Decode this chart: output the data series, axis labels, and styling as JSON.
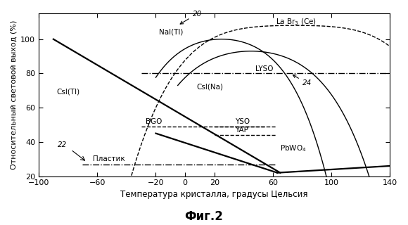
{
  "xlim": [
    -100,
    140
  ],
  "ylim": [
    20,
    115
  ],
  "yticks": [
    20,
    40,
    60,
    80,
    100
  ],
  "xticks": [
    -100,
    -60,
    -20,
    0,
    20,
    60,
    100,
    140
  ],
  "xlabel": "Температура кристалла, градусы Цельсия",
  "ylabel": "Относительный световой выход (%)",
  "fig_title": "Фиг.2",
  "line_color": "#000000",
  "bg_color": "#ffffff",
  "lyso_y": 80,
  "bgo_y": 49,
  "yso_y": 49,
  "yap_y": 44,
  "plastic_y": 27
}
